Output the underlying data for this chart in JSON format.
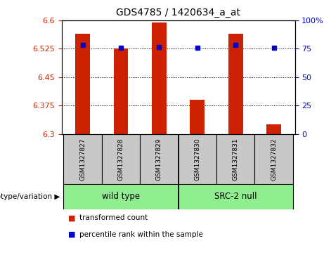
{
  "title": "GDS4785 / 1420634_a_at",
  "samples": [
    "GSM1327827",
    "GSM1327828",
    "GSM1327829",
    "GSM1327830",
    "GSM1327831",
    "GSM1327832"
  ],
  "red_values": [
    6.565,
    6.525,
    6.595,
    6.39,
    6.565,
    6.325
  ],
  "blue_values": [
    6.535,
    6.528,
    6.53,
    6.528,
    6.535,
    6.528
  ],
  "ylim_left": [
    6.3,
    6.6
  ],
  "yticks_left": [
    6.3,
    6.375,
    6.45,
    6.525,
    6.6
  ],
  "ytick_labels_left": [
    "6.3",
    "6.375",
    "6.45",
    "6.525",
    "6.6"
  ],
  "yticks_right": [
    0,
    25,
    50,
    75,
    100
  ],
  "ytick_labels_right": [
    "0",
    "25",
    "50",
    "75",
    "100%"
  ],
  "groups": [
    {
      "label": "wild type",
      "indices": [
        0,
        1,
        2
      ]
    },
    {
      "label": "SRC-2 null",
      "indices": [
        3,
        4,
        5
      ]
    }
  ],
  "red_color": "#CC2200",
  "blue_color": "#0000CC",
  "gray_color": "#C8C8C8",
  "green_color": "#90EE90",
  "genotype_label": "genotype/variation",
  "legend_items": [
    {
      "color": "#CC2200",
      "label": "transformed count"
    },
    {
      "color": "#0000CC",
      "label": "percentile rank within the sample"
    }
  ]
}
